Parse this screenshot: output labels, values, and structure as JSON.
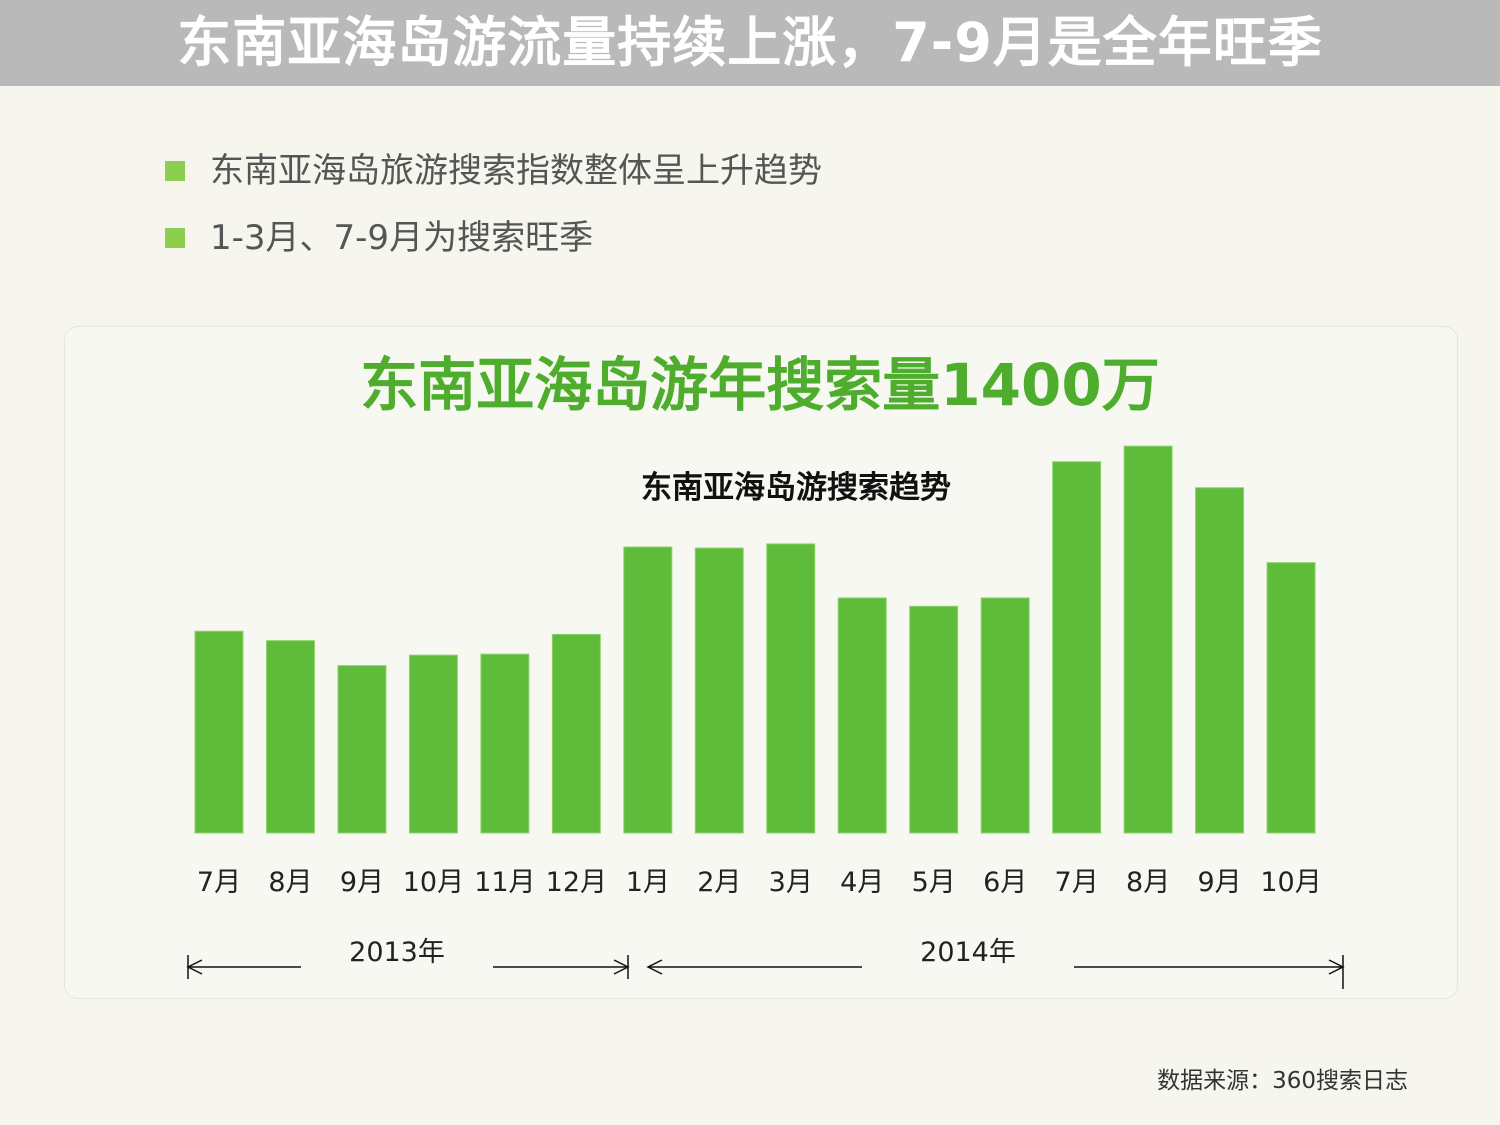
{
  "page": {
    "title": "东南亚海岛游流量持续上涨，7-9月是全年旺季",
    "bullets": [
      "东南亚海岛旅游搜索指数整体呈上升趋势",
      "1-3月、7-9月为搜索旺季"
    ],
    "headline": "东南亚海岛游年搜索量1400万",
    "source": "数据来源：360搜索日志"
  },
  "colors": {
    "bar": "#5fbb3a",
    "headline": "#4fad2e",
    "title_bar": "#b9b9b9",
    "bullet": "#8ccf4f"
  },
  "chart_data": {
    "type": "bar",
    "title": "东南亚海岛游搜索趋势",
    "categories": [
      "7月",
      "8月",
      "9月",
      "10月",
      "11月",
      "12月",
      "1月",
      "2月",
      "3月",
      "4月",
      "5月",
      "6月",
      "7月",
      "8月",
      "9月",
      "10月"
    ],
    "values": [
      194,
      185,
      161,
      171,
      172,
      191,
      275,
      274,
      278,
      226,
      218,
      226,
      357,
      372,
      332,
      260
    ],
    "ylim": [
      0,
      400
    ],
    "grid": false,
    "legend": "none",
    "year_groups": [
      {
        "label": "2013年",
        "from": 0,
        "to": 5
      },
      {
        "label": "2014年",
        "from": 6,
        "to": 15
      }
    ]
  }
}
